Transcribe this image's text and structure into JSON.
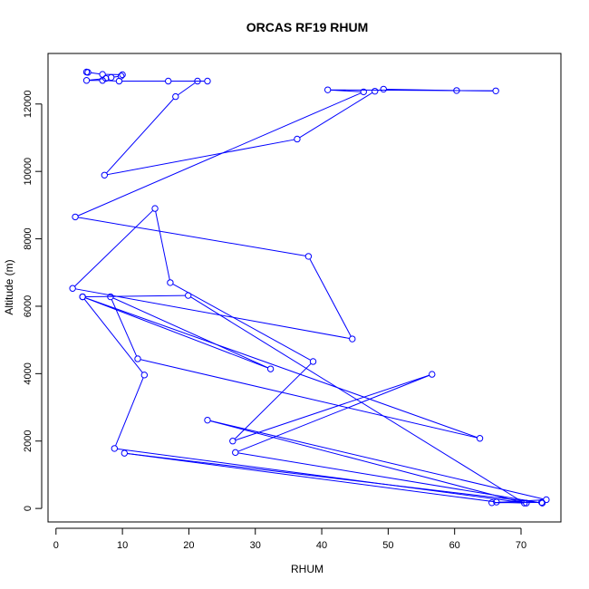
{
  "chart_data": {
    "type": "line",
    "title": "ORCAS RF19 RHUM",
    "xlabel": "RHUM",
    "ylabel": "Altitude (m)",
    "xlim": [
      -1.2,
      76
    ],
    "ylim": [
      -400,
      13500
    ],
    "xticks": [
      0,
      10,
      20,
      30,
      40,
      50,
      60,
      70
    ],
    "yticks": [
      0,
      2000,
      4000,
      6000,
      8000,
      10000,
      12000
    ],
    "grid": false,
    "legend": "none",
    "series_color": "#0000FF",
    "points": [
      [
        4.6,
        12950
      ],
      [
        4.8,
        12940
      ],
      [
        7.0,
        12880
      ],
      [
        10.0,
        12870
      ],
      [
        9.8,
        12830
      ],
      [
        8.3,
        12790
      ],
      [
        7.5,
        12760
      ],
      [
        4.6,
        12700
      ],
      [
        7.0,
        12700
      ],
      [
        9.5,
        12680
      ],
      [
        16.9,
        12680
      ],
      [
        22.8,
        12680
      ],
      [
        21.3,
        12680
      ],
      [
        18.0,
        12220
      ],
      [
        7.3,
        9890
      ],
      [
        36.3,
        10960
      ],
      [
        48.0,
        12380
      ],
      [
        49.3,
        12440
      ],
      [
        60.3,
        12400
      ],
      [
        66.2,
        12390
      ],
      [
        40.9,
        12420
      ],
      [
        46.3,
        12360
      ],
      [
        2.9,
        8650
      ],
      [
        38.0,
        7480
      ],
      [
        44.6,
        5030
      ],
      [
        2.5,
        6530
      ],
      [
        14.9,
        8900
      ],
      [
        17.2,
        6700
      ],
      [
        38.7,
        4360
      ],
      [
        26.6,
        2000
      ],
      [
        56.6,
        3980
      ],
      [
        27.0,
        1660
      ],
      [
        73.2,
        160
      ],
      [
        10.3,
        1640
      ],
      [
        66.3,
        190
      ],
      [
        70.8,
        160
      ],
      [
        8.8,
        1780
      ],
      [
        13.3,
        3960
      ],
      [
        4.0,
        6280
      ],
      [
        32.3,
        4140
      ],
      [
        8.2,
        6280
      ],
      [
        12.3,
        4440
      ],
      [
        63.8,
        2080
      ],
      [
        4.0,
        6280
      ],
      [
        19.9,
        6320
      ],
      [
        70.5,
        160
      ],
      [
        22.8,
        2620
      ],
      [
        73.8,
        260
      ],
      [
        65.6,
        170
      ],
      [
        73.1,
        180
      ]
    ]
  }
}
